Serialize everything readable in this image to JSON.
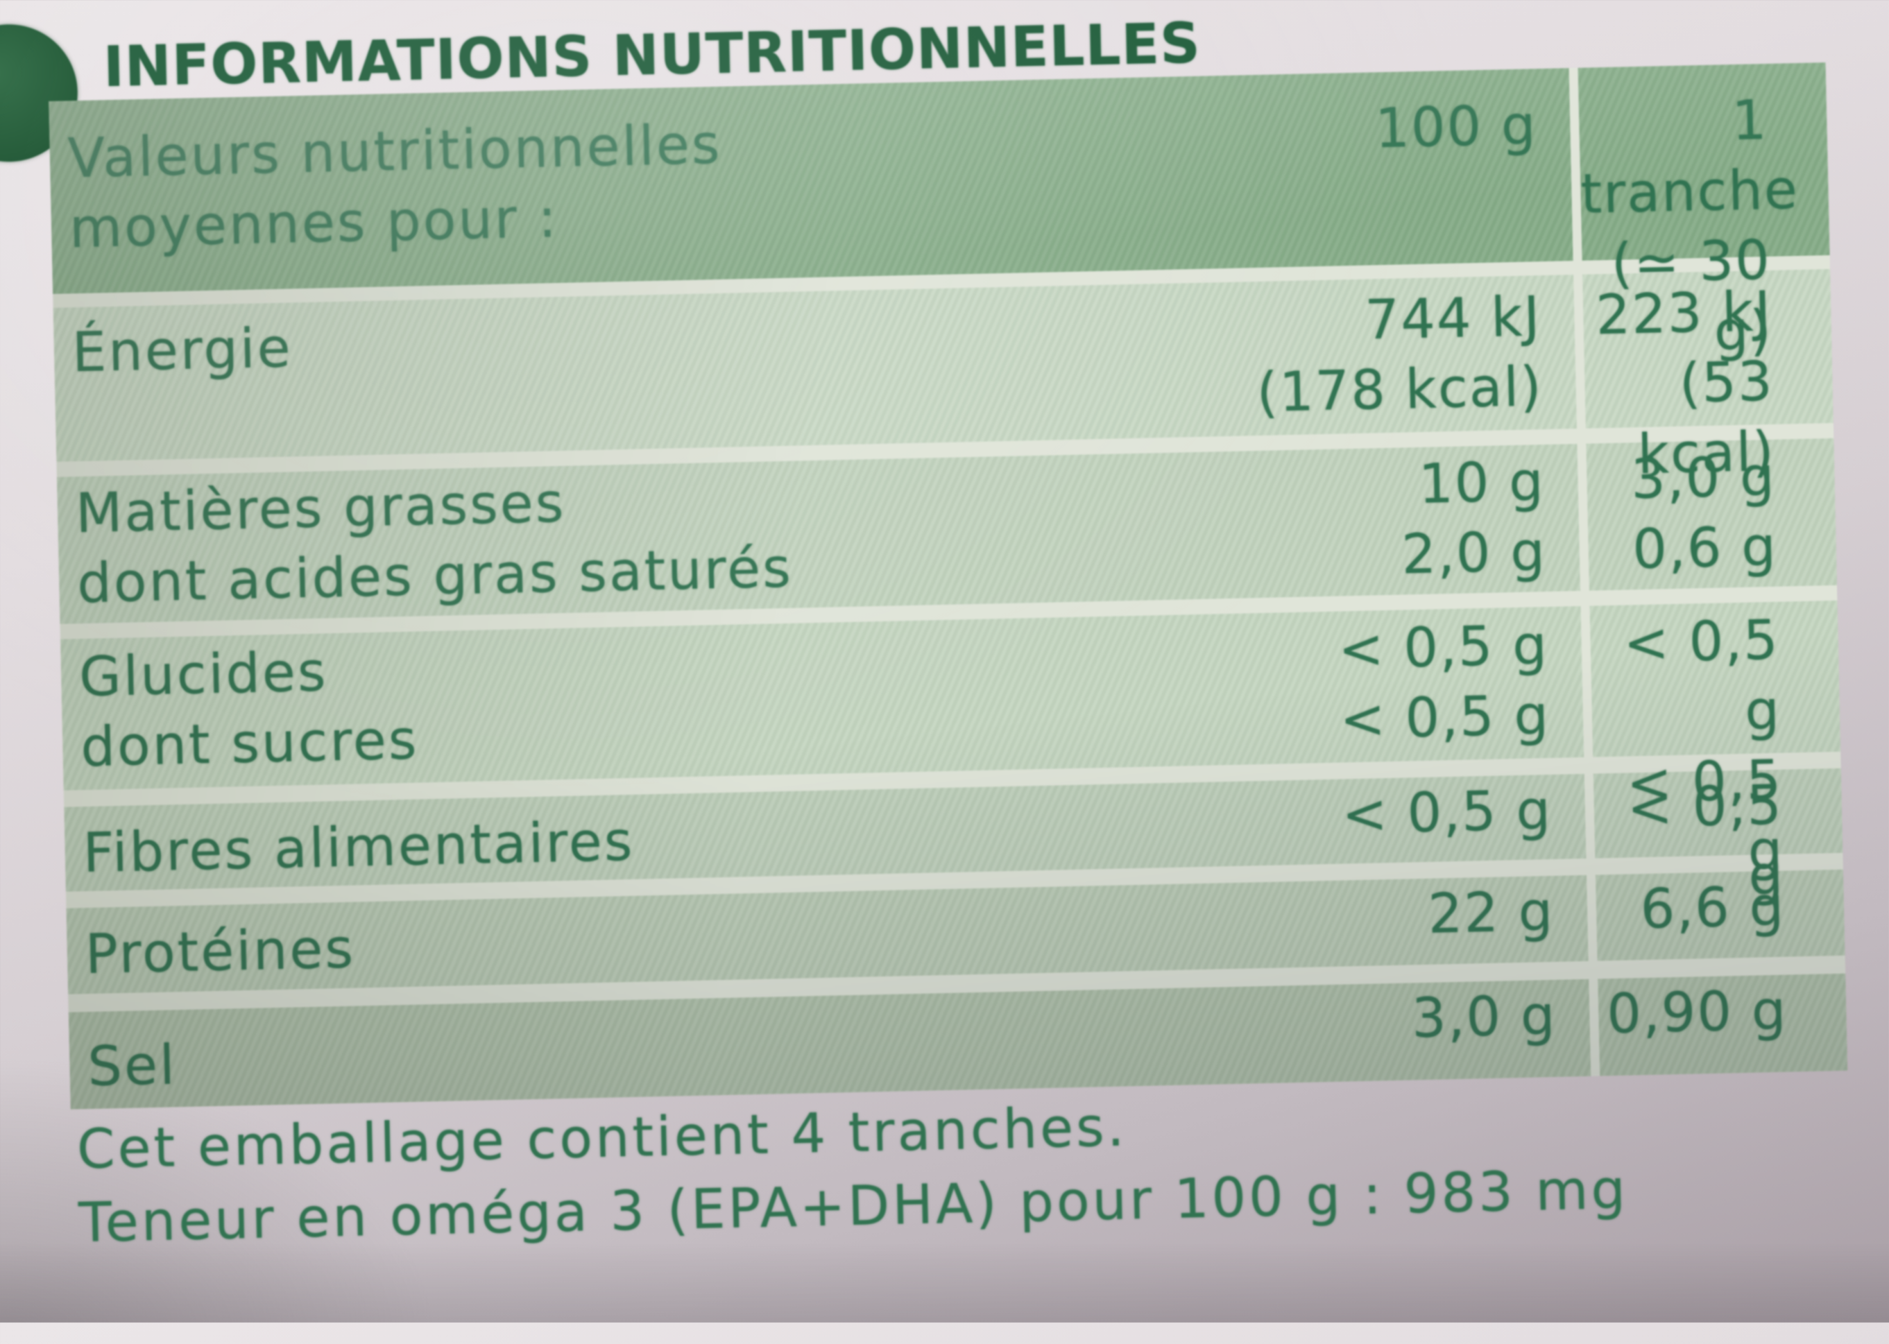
{
  "title": "INFORMATIONS NUTRITIONNELLES",
  "table": {
    "header": {
      "label_line1": "Valeurs nutritionnelles",
      "label_line2": "moyennes pour :",
      "col_per_100g": "100 g",
      "col_per_slice_line1": "1 tranche",
      "col_per_slice_line2": "(≃ 30 g)"
    },
    "rows": [
      {
        "labels": [
          "Énergie"
        ],
        "per_100g": [
          "744 kJ",
          "(178 kcal)"
        ],
        "per_slice": [
          "223 kJ",
          "(53 kcal)"
        ]
      },
      {
        "labels": [
          "Matières grasses",
          "dont acides gras saturés"
        ],
        "per_100g": [
          "10 g",
          "2,0 g"
        ],
        "per_slice": [
          "3,0 g",
          "0,6 g"
        ]
      },
      {
        "labels": [
          "Glucides",
          "dont sucres"
        ],
        "per_100g": [
          "< 0,5 g",
          "< 0,5 g"
        ],
        "per_slice": [
          "< 0,5 g",
          "< 0,5 g"
        ]
      },
      {
        "labels": [
          "Fibres alimentaires"
        ],
        "per_100g": [
          "< 0,5 g"
        ],
        "per_slice": [
          "< 0,5 g"
        ]
      },
      {
        "labels": [
          "Protéines"
        ],
        "per_100g": [
          "22 g"
        ],
        "per_slice": [
          "6,6 g"
        ]
      },
      {
        "labels": [
          "Sel"
        ],
        "per_100g": [
          "3,0 g"
        ],
        "per_slice": [
          "0,90 g"
        ]
      }
    ]
  },
  "footer": {
    "line1": "Cet emballage contient 4 tranches.",
    "line2": "Teneur en oméga 3 (EPA+DHA) pour 100 g : 983 mg"
  },
  "colors": {
    "title_text": "#20603c",
    "table_text": "#2e7450",
    "header_bg": "#85ac87",
    "row_bg": "#c4d5bf",
    "gap_bg": "#e0e5d9",
    "paper_bg": "#e7e2e4",
    "paper_shadow": "#a89ea5"
  }
}
